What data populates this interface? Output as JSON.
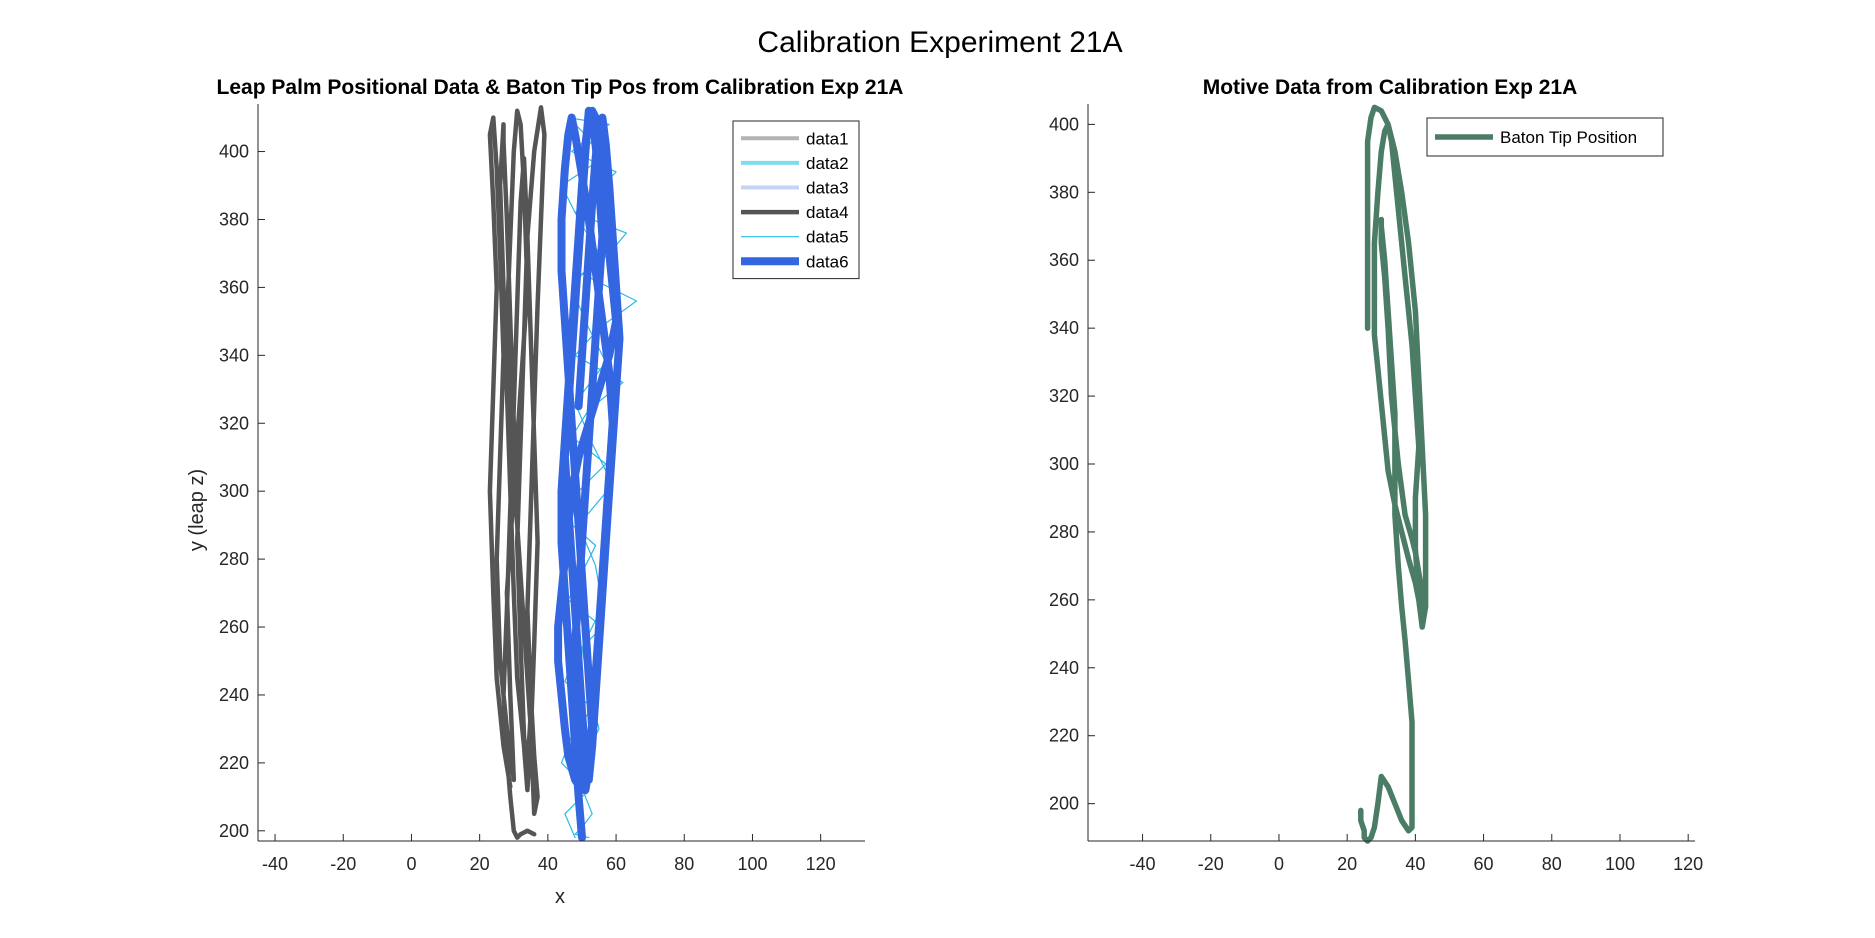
{
  "figure": {
    "title": "Calibration Experiment 21A"
  },
  "chart_data": [
    {
      "type": "line",
      "title": "Leap Palm Positional Data & Baton Tip Pos from Calibration Exp 21A",
      "xlabel": "x",
      "ylabel": "y (leap z)",
      "xlim": [
        -45,
        133
      ],
      "ylim": [
        197,
        414
      ],
      "xticks": [
        -40,
        -20,
        0,
        20,
        40,
        60,
        80,
        100,
        120
      ],
      "yticks": [
        200,
        220,
        240,
        260,
        280,
        300,
        320,
        340,
        360,
        380,
        400
      ],
      "legend": {
        "location": "top-right"
      },
      "series": [
        {
          "name": "data1",
          "color": "#b3b3b3",
          "style": "legend-only",
          "x": [],
          "y": []
        },
        {
          "name": "data2",
          "color": "#7fdcf0",
          "style": "legend-only",
          "x": [],
          "y": []
        },
        {
          "name": "data3",
          "color": "#c5d4f5",
          "style": "legend-only",
          "x": [],
          "y": []
        },
        {
          "name": "data4",
          "color": "#555555",
          "style": "thick",
          "x": [
            29,
            27,
            25,
            24,
            23,
            24,
            25,
            24,
            23,
            24,
            25,
            26,
            27,
            26,
            25,
            26,
            28,
            30,
            29,
            28,
            30,
            32,
            34,
            33,
            32,
            31,
            30,
            29,
            28,
            29,
            31,
            33,
            35,
            34,
            33,
            32,
            31,
            32,
            33,
            34,
            36,
            38,
            39,
            38,
            37,
            36,
            35,
            34,
            35,
            36,
            37,
            36,
            35,
            33,
            31,
            30,
            29,
            28,
            27,
            27,
            26,
            27,
            28,
            29,
            30,
            31,
            33,
            34,
            35,
            36,
            37,
            36,
            35,
            34,
            33,
            32,
            31,
            30,
            29,
            28,
            27,
            28,
            29,
            30,
            31,
            32,
            34,
            36
          ],
          "y": [
            213,
            225,
            245,
            270,
            300,
            330,
            360,
            385,
            405,
            410,
            395,
            370,
            340,
            310,
            280,
            250,
            230,
            215,
            240,
            270,
            300,
            330,
            360,
            390,
            408,
            412,
            400,
            375,
            350,
            320,
            290,
            260,
            235,
            218,
            228,
            255,
            285,
            315,
            345,
            375,
            400,
            413,
            405,
            380,
            355,
            325,
            295,
            265,
            240,
            222,
            210,
            205,
            230,
            260,
            290,
            320,
            350,
            380,
            403,
            408,
            390,
            360,
            330,
            300,
            270,
            245,
            225,
            212,
            228,
            255,
            285,
            315,
            345,
            375,
            398,
            385,
            355,
            325,
            295,
            265,
            240,
            222,
            210,
            200,
            198,
            199,
            200,
            199
          ]
        },
        {
          "name": "data5",
          "color": "#2ab8e8",
          "style": "thin",
          "x": [
            48,
            45,
            52,
            44,
            47,
            53,
            45,
            48,
            56,
            46,
            50,
            54,
            45,
            49,
            57,
            47,
            52,
            62,
            48,
            55,
            66,
            50,
            58,
            63,
            48,
            54,
            60,
            47,
            52,
            58,
            46,
            50,
            56,
            44,
            49,
            55,
            47,
            51,
            57,
            48,
            53,
            59,
            49,
            54,
            56,
            50,
            52,
            55,
            49,
            51,
            53,
            50,
            48,
            52
          ],
          "y": [
            198,
            205,
            212,
            220,
            228,
            236,
            244,
            252,
            260,
            268,
            276,
            284,
            292,
            300,
            308,
            316,
            324,
            332,
            340,
            348,
            356,
            364,
            370,
            376,
            382,
            388,
            394,
            400,
            404,
            408,
            410,
            406,
            398,
            390,
            380,
            370,
            360,
            350,
            338,
            326,
            314,
            302,
            290,
            278,
            266,
            254,
            242,
            230,
            218,
            210,
            205,
            201,
            199,
            198
          ]
        },
        {
          "name": "data6",
          "color": "#3366e0",
          "style": "extra-thick",
          "x": [
            50,
            49,
            48,
            47,
            46,
            45,
            44,
            44,
            45,
            46,
            47,
            48,
            49,
            50,
            51,
            52,
            53,
            55,
            56,
            57,
            57,
            58,
            59,
            60,
            58,
            55,
            52,
            49,
            47,
            46,
            45,
            44,
            43,
            43,
            44,
            45,
            46,
            48,
            50,
            52,
            53,
            54,
            55,
            56,
            57,
            58,
            59,
            58,
            56,
            54,
            52,
            50,
            48,
            47,
            46,
            45,
            44,
            44,
            45,
            46,
            47,
            48,
            49,
            50,
            51,
            52,
            53,
            52,
            51,
            50,
            49,
            48,
            48,
            49,
            50,
            51,
            52,
            53,
            54,
            55,
            56,
            55,
            54,
            53,
            52,
            51,
            50,
            49,
            48,
            47,
            46,
            45,
            46,
            47,
            48,
            49,
            50,
            51,
            52,
            53,
            54,
            55,
            56,
            57,
            58,
            59,
            60,
            61,
            60,
            59,
            58,
            57,
            56,
            55,
            54,
            53,
            52,
            51,
            50,
            49
          ],
          "y": [
            198,
            210,
            225,
            240,
            255,
            270,
            285,
            300,
            315,
            330,
            345,
            360,
            375,
            390,
            402,
            410,
            412,
            408,
            400,
            390,
            380,
            370,
            360,
            350,
            340,
            330,
            320,
            310,
            300,
            290,
            280,
            270,
            260,
            250,
            240,
            230,
            222,
            215,
            212,
            220,
            232,
            246,
            260,
            275,
            290,
            305,
            320,
            335,
            350,
            365,
            380,
            393,
            405,
            410,
            405,
            395,
            380,
            365,
            350,
            335,
            320,
            305,
            290,
            275,
            260,
            245,
            230,
            218,
            212,
            215,
            225,
            240,
            255,
            270,
            285,
            300,
            315,
            330,
            345,
            360,
            375,
            390,
            402,
            410,
            412,
            400,
            385,
            370,
            355,
            340,
            325,
            310,
            295,
            280,
            265,
            250,
            235,
            222,
            215,
            225,
            240,
            255,
            270,
            285,
            300,
            315,
            330,
            345,
            360,
            375,
            390,
            402,
            410,
            408,
            398,
            385,
            370,
            355,
            340,
            325
          ]
        }
      ]
    },
    {
      "type": "line",
      "title": "Motive Data from Calibration Exp 21A",
      "xlabel": "",
      "ylabel": "",
      "xlim": [
        -56,
        122
      ],
      "ylim": [
        189,
        406
      ],
      "xticks": [
        -40,
        -20,
        0,
        20,
        40,
        60,
        80,
        100,
        120
      ],
      "yticks": [
        200,
        220,
        240,
        260,
        280,
        300,
        320,
        340,
        360,
        380,
        400
      ],
      "legend": {
        "location": "top-right"
      },
      "series": [
        {
          "name": "Baton Tip Position",
          "color": "#4a7c66",
          "x": [
            26,
            26,
            26,
            26,
            27,
            28,
            30,
            32,
            34,
            36,
            38,
            40,
            41,
            42,
            43,
            43,
            43,
            42,
            41,
            40,
            40,
            41,
            40,
            39,
            38,
            37,
            36,
            35,
            34,
            33,
            32,
            31,
            30,
            29,
            28,
            28,
            28,
            29,
            30,
            31,
            32,
            34,
            36,
            38,
            40,
            41,
            42,
            42,
            41,
            40,
            39,
            37,
            35,
            33,
            32,
            31,
            30,
            30,
            30,
            30,
            31,
            32,
            33,
            34,
            34,
            34,
            35,
            36,
            37,
            38,
            39,
            39,
            39,
            39,
            39,
            39,
            38,
            36,
            34,
            32,
            30,
            29,
            28,
            27,
            26,
            25,
            25,
            24,
            24
          ],
          "y": [
            340,
            360,
            380,
            395,
            402,
            405,
            404,
            400,
            392,
            380,
            365,
            345,
            325,
            305,
            285,
            270,
            258,
            252,
            260,
            275,
            290,
            305,
            320,
            335,
            345,
            355,
            365,
            375,
            385,
            395,
            400,
            398,
            392,
            380,
            365,
            350,
            338,
            328,
            318,
            308,
            298,
            288,
            280,
            272,
            265,
            260,
            258,
            262,
            268,
            274,
            278,
            285,
            300,
            320,
            340,
            355,
            365,
            370,
            372,
            370,
            360,
            345,
            330,
            315,
            300,
            285,
            270,
            258,
            248,
            236,
            224,
            214,
            206,
            200,
            196,
            193,
            192,
            195,
            200,
            205,
            208,
            200,
            193,
            190,
            189,
            190,
            192,
            195,
            198
          ]
        }
      ]
    }
  ]
}
